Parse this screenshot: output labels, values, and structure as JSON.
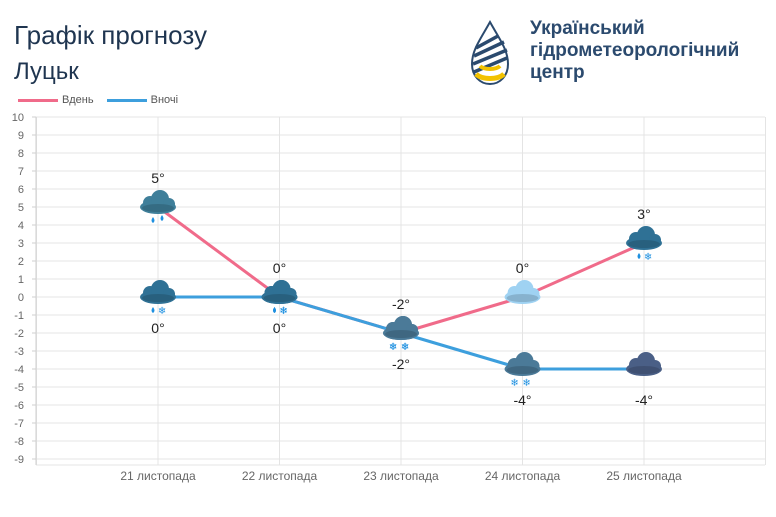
{
  "header": {
    "title": "Графік прогнозу",
    "city": "Луцьк",
    "org_lines": [
      "Український",
      "гідрометеорологічний",
      "центр"
    ]
  },
  "legend": [
    {
      "label": "Вдень",
      "color": "#f06b8a"
    },
    {
      "label": "Вночі",
      "color": "#3d9fdd"
    }
  ],
  "chart_data": {
    "type": "line",
    "title": "Графік прогнозу",
    "categories": [
      "21 листопада",
      "22 листопада",
      "23 листопада",
      "24 листопада",
      "25 листопада"
    ],
    "ylim": [
      -9,
      10
    ],
    "yticks": [
      10,
      9,
      8,
      7,
      6,
      5,
      4,
      3,
      2,
      1,
      0,
      -1,
      -2,
      -3,
      -4,
      -5,
      -6,
      -7,
      -8,
      -9
    ],
    "grid": true,
    "series": [
      {
        "name": "Вдень",
        "color": "#f06b8a",
        "values": [
          5,
          0,
          -2,
          0,
          3
        ],
        "labels": [
          "5°",
          "0°",
          "-2°",
          "0°",
          "3°"
        ],
        "icons": [
          "rain-icon",
          "rain-snow-icon",
          "snow-icon",
          "cloud-light-icon",
          "rain-snow-icon"
        ]
      },
      {
        "name": "Вночі",
        "color": "#3d9fdd",
        "values": [
          0,
          0,
          -2,
          -4,
          -4
        ],
        "labels": [
          "0°",
          "0°",
          "-2°",
          "-4°",
          "-4°"
        ],
        "icons": [
          "rain-snow-icon",
          "rain-snow-icon",
          "snow-icon",
          "snow-icon",
          "cloud-dark-icon"
        ]
      }
    ]
  }
}
